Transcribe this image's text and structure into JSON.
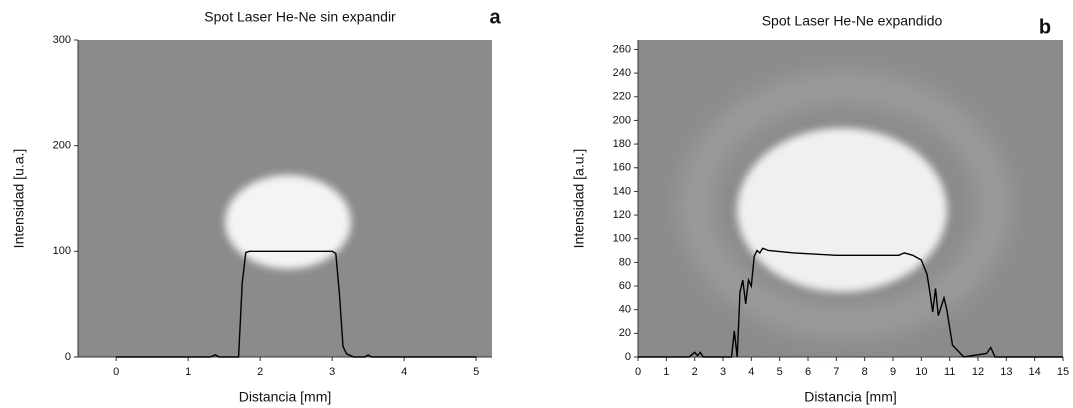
{
  "chart_data": [
    {
      "type": "line",
      "title": "Spot Laser He-Ne sin expandir",
      "label": "a",
      "x_label": "Distancia [mm]",
      "y_label": "Intensidad [u.a.]",
      "xlim": [
        -0.53,
        5.22
      ],
      "xticks": [
        0,
        1,
        2,
        3,
        4,
        5
      ],
      "ylim": [
        0,
        300
      ],
      "yticks": [
        0,
        100,
        200,
        300
      ],
      "color": "#000000",
      "x": [
        0,
        1.3,
        1.38,
        1.43,
        1.5,
        1.7,
        1.75,
        1.8,
        1.85,
        2.5,
        3.0,
        3.05,
        3.1,
        3.15,
        3.2,
        3.3,
        3.45,
        3.5,
        3.55,
        5.0
      ],
      "values": [
        0,
        0,
        2,
        0,
        0,
        0,
        70,
        99,
        100,
        100,
        100,
        98,
        60,
        10,
        3,
        0,
        0,
        2,
        0,
        0
      ]
    },
    {
      "type": "line",
      "title": "Spot Laser He-Ne expandido",
      "label": "b",
      "x_label": "Distancia [mm]",
      "y_label": "Intensidad [a.u.]",
      "xlim": [
        0,
        15
      ],
      "xticks": [
        0,
        1,
        2,
        3,
        4,
        5,
        6,
        7,
        8,
        9,
        10,
        11,
        12,
        13,
        14,
        15
      ],
      "ylim": [
        0,
        268
      ],
      "yticks": [
        0,
        20,
        40,
        60,
        80,
        100,
        120,
        140,
        160,
        180,
        200,
        220,
        240,
        260
      ],
      "color": "#000000",
      "x": [
        0,
        1.8,
        2.0,
        2.1,
        2.2,
        2.3,
        3.3,
        3.4,
        3.5,
        3.6,
        3.7,
        3.8,
        3.9,
        4.0,
        4.1,
        4.2,
        4.3,
        4.4,
        4.6,
        5.5,
        7.0,
        9.2,
        9.4,
        9.7,
        10.0,
        10.2,
        10.3,
        10.4,
        10.5,
        10.6,
        10.8,
        10.9,
        11.1,
        11.3,
        11.5,
        12.3,
        12.45,
        12.6,
        15
      ],
      "values": [
        0,
        0,
        4,
        1,
        4,
        0,
        0,
        22,
        0,
        55,
        65,
        45,
        65,
        60,
        85,
        90,
        88,
        92,
        90,
        88,
        86,
        86,
        88,
        86,
        82,
        70,
        55,
        38,
        58,
        35,
        50,
        40,
        10,
        5,
        0,
        3,
        8,
        0,
        0
      ]
    }
  ]
}
